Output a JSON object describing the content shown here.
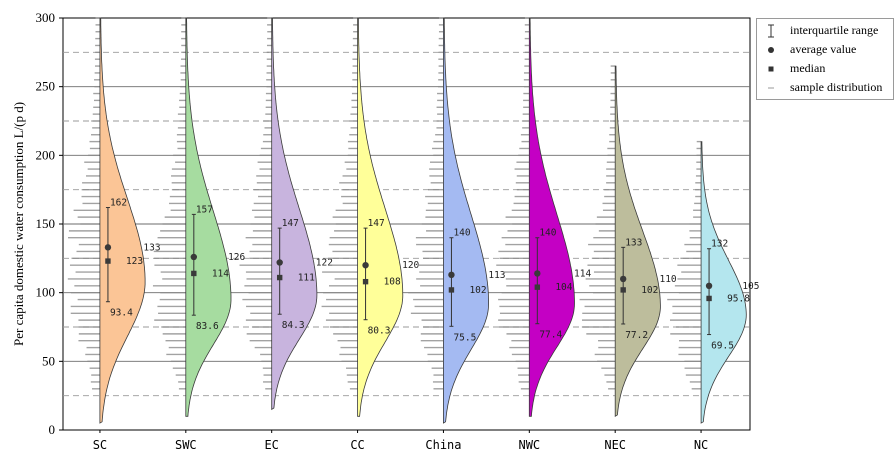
{
  "chart_data": {
    "type": "violin",
    "ylabel": "Per capita domestic water consumption   L/(p d)",
    "xlabel": "",
    "ylim": [
      0,
      300
    ],
    "yticks": [
      0,
      50,
      100,
      150,
      200,
      250,
      300
    ],
    "grid": {
      "solid": [
        50,
        100,
        150,
        200,
        250
      ],
      "dashed": [
        25,
        75,
        125,
        175,
        225,
        275
      ]
    },
    "legend_position": "outside-top-right",
    "categories": [
      "SC",
      "SWC",
      "EC",
      "CC",
      "China",
      "NWC",
      "NEC",
      "NC"
    ],
    "series": [
      {
        "category": "SC",
        "color": "#FBC596",
        "q3": 162,
        "average": 133,
        "median": 123,
        "q1": 93.4,
        "q3_label": "162",
        "average_label": "133",
        "median_label": "123",
        "q1_label": "93.4",
        "min": 5,
        "max": 300,
        "mode": 108
      },
      {
        "category": "SWC",
        "color": "#A6DCA0",
        "q3": 157,
        "average": 126,
        "median": 114,
        "q1": 83.6,
        "q3_label": "157",
        "average_label": "126",
        "median_label": "114",
        "q1_label": "83.6",
        "min": 10,
        "max": 300,
        "mode": 95
      },
      {
        "category": "EC",
        "color": "#C8B4DE",
        "q3": 147,
        "average": 122,
        "median": 111,
        "q1": 84.3,
        "q3_label": "147",
        "average_label": "122",
        "median_label": "111",
        "q1_label": "84.3",
        "min": 15,
        "max": 300,
        "mode": 98
      },
      {
        "category": "CC",
        "color": "#FFFF99",
        "q3": 147,
        "average": 120,
        "median": 108,
        "q1": 80.3,
        "q3_label": "147",
        "average_label": "120",
        "median_label": "108",
        "q1_label": "80.3",
        "min": 10,
        "max": 300,
        "mode": 98
      },
      {
        "category": "China",
        "color": "#A4BAF2",
        "q3": 140,
        "average": 113,
        "median": 102,
        "q1": 75.5,
        "q3_label": "140",
        "average_label": "113",
        "median_label": "102",
        "q1_label": "75.5",
        "min": 5,
        "max": 300,
        "mode": 92
      },
      {
        "category": "NWC",
        "color": "#C400C4",
        "q3": 140,
        "average": 114,
        "median": 104,
        "q1": 77.4,
        "q3_label": "140",
        "average_label": "114",
        "median_label": "104",
        "q1_label": "77.4",
        "min": 10,
        "max": 300,
        "mode": 92
      },
      {
        "category": "NEC",
        "color": "#BDBD9C",
        "q3": 133,
        "average": 110,
        "median": 102,
        "q1": 77.2,
        "q3_label": "133",
        "average_label": "110",
        "median_label": "102",
        "q1_label": "77.2",
        "min": 10,
        "max": 265,
        "mode": 90
      },
      {
        "category": "NC",
        "color": "#B4E6EE",
        "q3": 132,
        "average": 105,
        "median": 95.8,
        "q1": 69.5,
        "q3_label": "132",
        "average_label": "105",
        "median_label": "95.8",
        "q1_label": "69.5",
        "min": 5,
        "max": 210,
        "mode": 84
      }
    ]
  },
  "legend": {
    "items": [
      {
        "label": "interquartile range",
        "icon": "interquartile-range-icon"
      },
      {
        "label": "average value",
        "icon": "average-dot-icon"
      },
      {
        "label": "median",
        "icon": "median-square-icon"
      },
      {
        "label": "sample distribution",
        "icon": "sample-line-icon"
      }
    ]
  }
}
